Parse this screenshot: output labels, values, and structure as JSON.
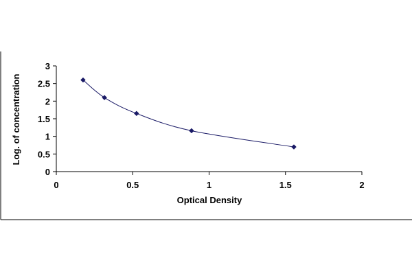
{
  "chart_data": {
    "type": "scatter",
    "title": "",
    "xlabel": "Optical Density",
    "ylabel": "Log. of concentration",
    "xlim": [
      0,
      2
    ],
    "ylim": [
      0,
      3
    ],
    "x_ticks": [
      "0",
      "0.5",
      "1",
      "1.5",
      "2"
    ],
    "y_ticks": [
      "0",
      "0.5",
      "1",
      "1.5",
      "2",
      "2.5",
      "3"
    ],
    "grid": false,
    "legend": "none",
    "trendline": "smooth curve through points",
    "series": [
      {
        "x": [
          0.175,
          0.315,
          0.525,
          0.885,
          1.555
        ],
        "y": [
          2.6,
          2.1,
          1.65,
          1.16,
          0.7
        ]
      }
    ],
    "colors": {
      "marker": "#1a1a66",
      "line": "#1a1a66",
      "axis": "#000000",
      "frame": "#000000"
    }
  }
}
